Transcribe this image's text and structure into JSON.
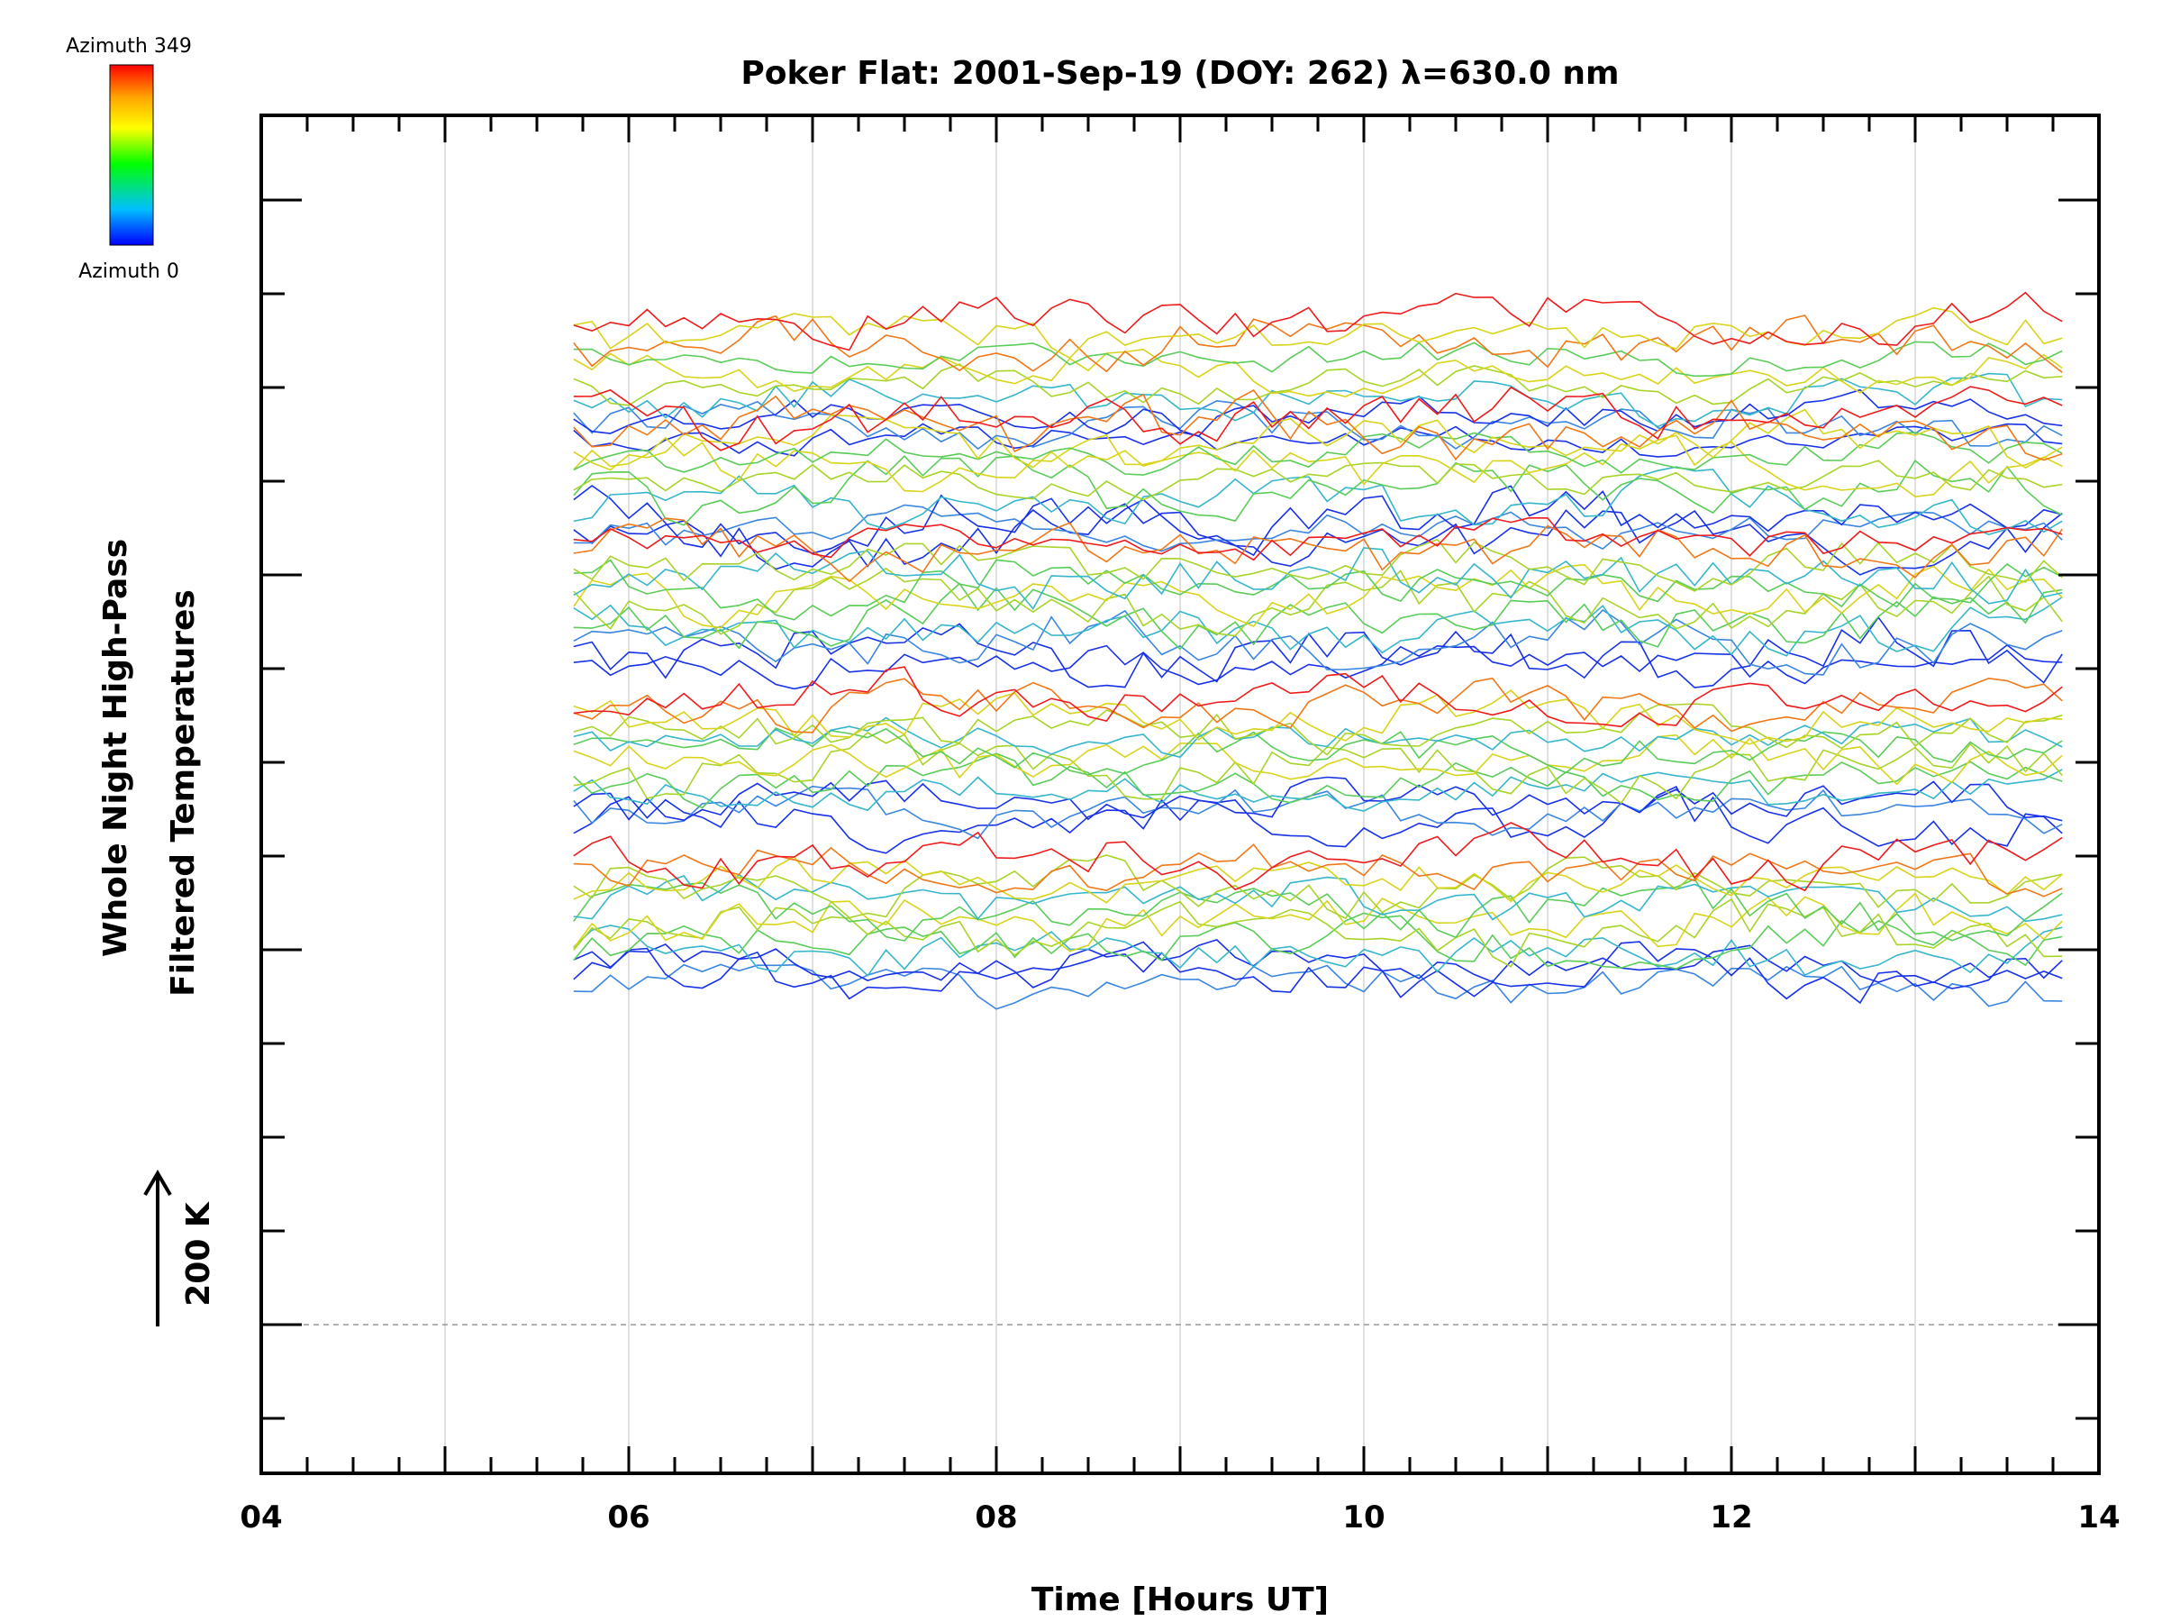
{
  "chart_data": {
    "type": "line",
    "title": "Poker Flat: 2001-Sep-19 (DOY: 262) λ=630.0 nm",
    "xlabel": "Time [Hours UT]",
    "ylabel_line1": "Whole Night High-Pass",
    "ylabel_line2": "Filtered Temperatures",
    "xlim": [
      4,
      14
    ],
    "x_ticks": [
      "04",
      "06",
      "08",
      "10",
      "12",
      "14"
    ],
    "x_tick_values": [
      4,
      6,
      8,
      10,
      12,
      14
    ],
    "vertical_grid": [
      5,
      6,
      7,
      8,
      9,
      10,
      11,
      12,
      13
    ],
    "time_start": 5.7,
    "time_end": 13.8,
    "time_step": 0.1,
    "scale_label": "200 K",
    "colorbar": {
      "top_label": "Azimuth 349",
      "bottom_label": "Azimuth 0",
      "colors": [
        "#ff0000",
        "#ffa500",
        "#ffff00",
        "#00ff00",
        "#00c0ff",
        "#0000ff"
      ]
    },
    "colors": {
      "red": "#ee1c1c",
      "orange": "#f07818",
      "yellow": "#d8d41a",
      "lime": "#a8d428",
      "green": "#5acc58",
      "cyan": "#36b6cc",
      "sky": "#3a86e0",
      "blue": "#1832e8"
    },
    "series_groups": [
      {
        "baseline": 225,
        "amplitude": 16,
        "colors": [
          "blue",
          "sky",
          "blue",
          "cyan",
          "lime",
          "yellow",
          "green",
          "orange",
          "yellow",
          "red"
        ]
      },
      {
        "baseline": 335,
        "amplitude": 18,
        "colors": [
          "blue",
          "sky",
          "blue",
          "cyan",
          "green",
          "lime",
          "yellow",
          "green",
          "yellow",
          "orange",
          "red"
        ]
      },
      {
        "baseline": 470,
        "amplitude": 18,
        "colors": [
          "blue",
          "blue",
          "sky",
          "cyan",
          "green",
          "lime",
          "yellow",
          "green",
          "cyan",
          "lime",
          "orange",
          "red"
        ]
      },
      {
        "baseline": 645,
        "amplitude": 18,
        "colors": [
          "blue",
          "sky",
          "blue",
          "cyan",
          "green",
          "lime",
          "yellow",
          "green",
          "cyan",
          "lime",
          "yellow",
          "orange",
          "red"
        ]
      },
      {
        "baseline": 825,
        "amplitude": 17,
        "colors": [
          "sky",
          "blue",
          "blue",
          "cyan",
          "green",
          "lime",
          "yellow",
          "green",
          "cyan",
          "lime",
          "yellow",
          "orange",
          "red"
        ]
      }
    ]
  }
}
